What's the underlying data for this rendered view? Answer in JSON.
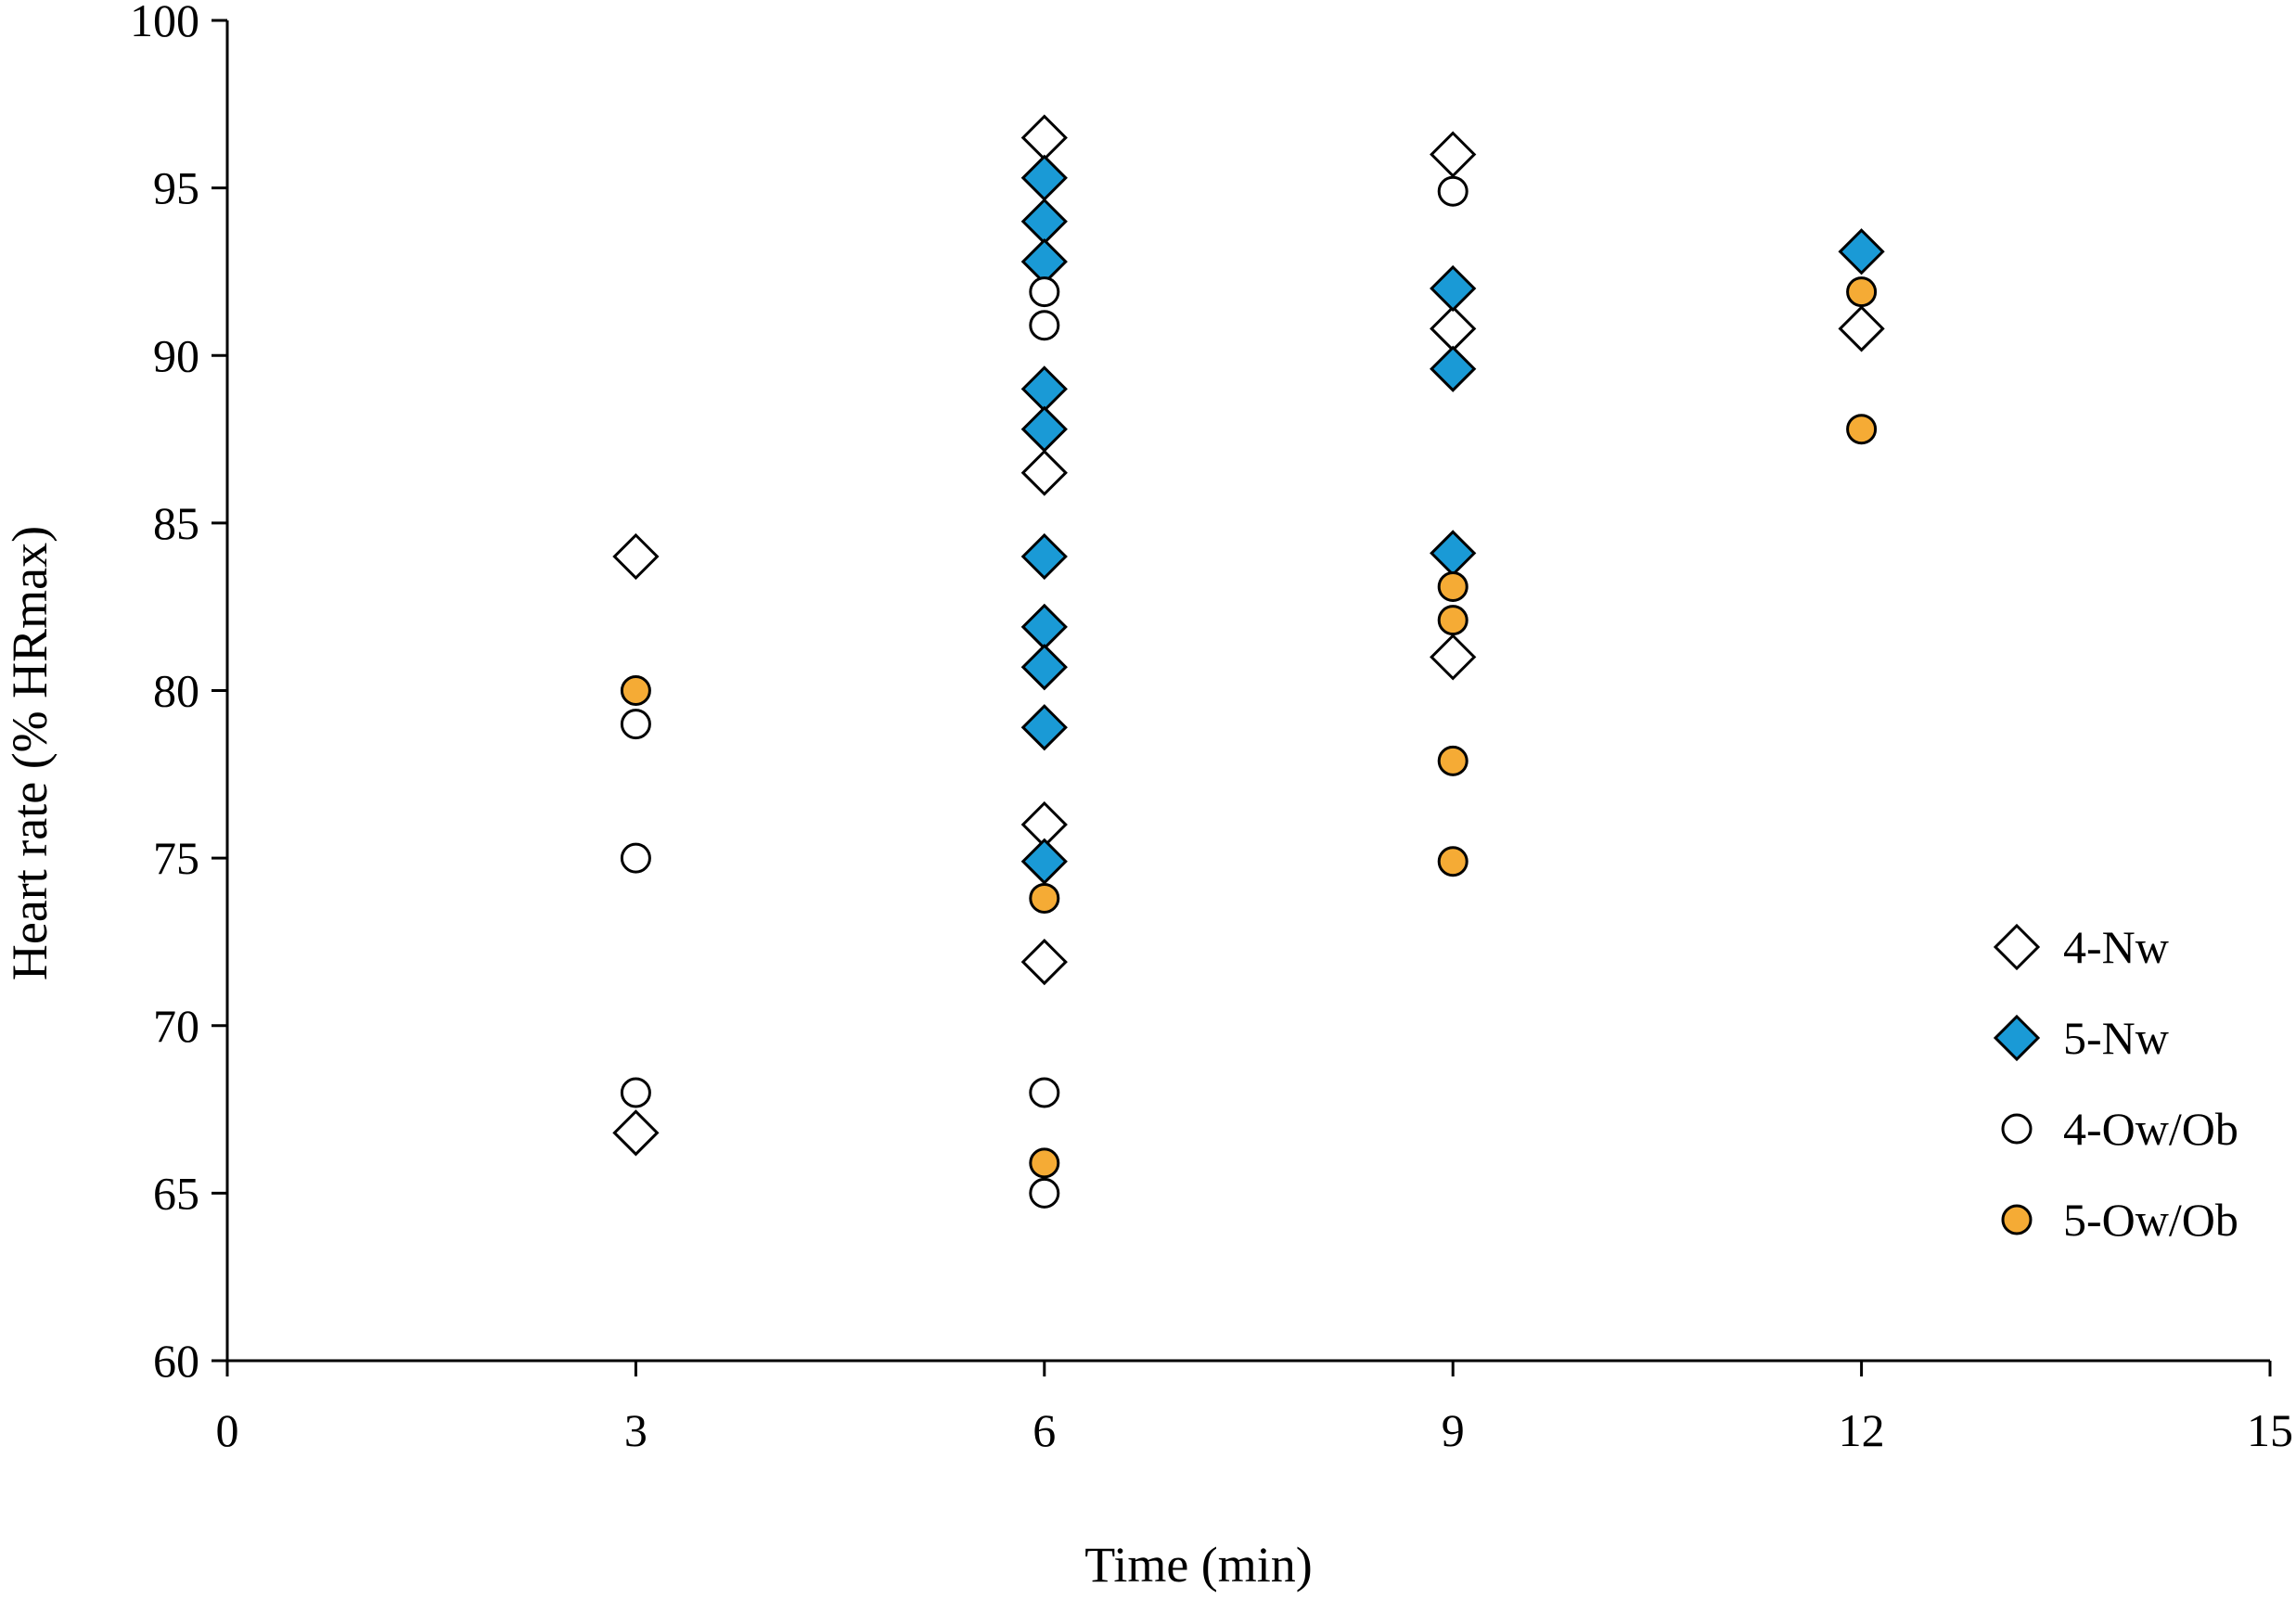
{
  "chart_data": {
    "type": "scatter",
    "title": "",
    "xlabel": "Time (min)",
    "ylabel": "Heart rate (% HRmax)",
    "xlim": [
      0,
      15
    ],
    "ylim": [
      60,
      100
    ],
    "xticks": [
      0,
      3,
      6,
      9,
      12,
      15
    ],
    "yticks": [
      60,
      65,
      70,
      75,
      80,
      85,
      90,
      95,
      100
    ],
    "grid": false,
    "legend_position": "bottom-right",
    "series": [
      {
        "name": "4-Nw",
        "marker": "diamond",
        "fill": "#ffffff",
        "points": [
          [
            3,
            84
          ],
          [
            3,
            66.8
          ],
          [
            6,
            96.5
          ],
          [
            6,
            86.5
          ],
          [
            6,
            76
          ],
          [
            6,
            71.9
          ],
          [
            9,
            96
          ],
          [
            9,
            90.8
          ],
          [
            9,
            81
          ],
          [
            12,
            90.8
          ]
        ]
      },
      {
        "name": "5-Nw",
        "marker": "diamond",
        "fill": "#1a9ad6",
        "points": [
          [
            6,
            95.3
          ],
          [
            6,
            94
          ],
          [
            6,
            92.8
          ],
          [
            6,
            89
          ],
          [
            6,
            87.8
          ],
          [
            6,
            84
          ],
          [
            6,
            81.9
          ],
          [
            6,
            80.7
          ],
          [
            6,
            78.9
          ],
          [
            6,
            74.9
          ],
          [
            9,
            92
          ],
          [
            9,
            89.6
          ],
          [
            9,
            84.1
          ],
          [
            12,
            93.1
          ]
        ]
      },
      {
        "name": "4-Ow/Ob",
        "marker": "circle",
        "fill": "#ffffff",
        "points": [
          [
            3,
            79
          ],
          [
            3,
            75
          ],
          [
            3,
            68
          ],
          [
            6,
            91.9
          ],
          [
            6,
            90.9
          ],
          [
            6,
            68
          ],
          [
            6,
            65
          ],
          [
            9,
            94.9
          ]
        ]
      },
      {
        "name": "5-Ow/Ob",
        "marker": "circle",
        "fill": "#f5ab35",
        "points": [
          [
            3,
            80
          ],
          [
            6,
            73.8
          ],
          [
            6,
            65.9
          ],
          [
            9,
            83.1
          ],
          [
            9,
            82.1
          ],
          [
            9,
            77.9
          ],
          [
            9,
            74.9
          ],
          [
            12,
            91.9
          ],
          [
            12,
            87.8
          ]
        ]
      }
    ]
  }
}
